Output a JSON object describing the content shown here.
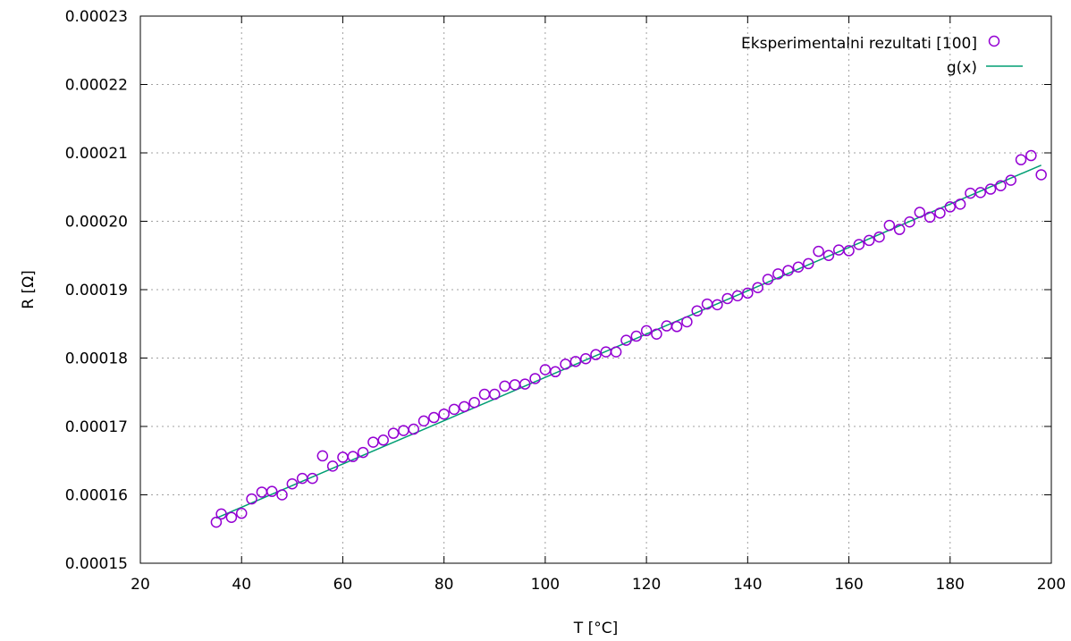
{
  "chart_data": {
    "type": "scatter",
    "title": "",
    "xlabel": "T [°C]",
    "ylabel": "R [Ω]",
    "xlim": [
      20,
      200
    ],
    "ylim": [
      0.00015,
      0.00023
    ],
    "x_ticks": [
      "20",
      "40",
      "60",
      "80",
      "100",
      "120",
      "140",
      "160",
      "180",
      "200"
    ],
    "y_ticks": [
      "0.00015",
      "0.00016",
      "0.00017",
      "0.00018",
      "0.00019",
      "0.00020",
      "0.00021",
      "0.00022",
      "0.00023"
    ],
    "grid": true,
    "legend_position": "top-right",
    "series": [
      {
        "name": "Eksperimentalni rezultati [100]",
        "kind": "points",
        "color": "#9400d3",
        "x": [
          35,
          36,
          38,
          40,
          42,
          44,
          46,
          48,
          50,
          52,
          54,
          56,
          58,
          60,
          62,
          64,
          66,
          68,
          70,
          72,
          74,
          76,
          78,
          80,
          82,
          84,
          86,
          88,
          90,
          92,
          94,
          96,
          98,
          100,
          102,
          104,
          106,
          108,
          110,
          112,
          114,
          116,
          118,
          120,
          122,
          124,
          126,
          128,
          130,
          132,
          134,
          136,
          138,
          140,
          142,
          144,
          146,
          148,
          150,
          152,
          154,
          156,
          158,
          160,
          162,
          164,
          166,
          168,
          170,
          172,
          174,
          176,
          178,
          180,
          182,
          184,
          186,
          188,
          190,
          192,
          194,
          196,
          198
        ],
        "y": [
          0.000156,
          0.0001572,
          0.0001567,
          0.0001573,
          0.0001594,
          0.0001604,
          0.0001605,
          0.00016,
          0.0001616,
          0.0001624,
          0.0001624,
          0.0001657,
          0.0001642,
          0.0001655,
          0.0001656,
          0.0001662,
          0.0001677,
          0.000168,
          0.000169,
          0.0001694,
          0.0001696,
          0.0001708,
          0.0001713,
          0.0001718,
          0.0001725,
          0.0001729,
          0.0001735,
          0.0001747,
          0.0001747,
          0.0001759,
          0.0001761,
          0.0001762,
          0.000177,
          0.0001783,
          0.000178,
          0.0001791,
          0.0001795,
          0.0001799,
          0.0001805,
          0.0001809,
          0.0001809,
          0.0001826,
          0.0001832,
          0.000184,
          0.0001835,
          0.0001847,
          0.0001846,
          0.0001853,
          0.0001869,
          0.0001879,
          0.0001878,
          0.0001887,
          0.0001891,
          0.0001895,
          0.0001903,
          0.0001915,
          0.0001923,
          0.0001928,
          0.0001933,
          0.0001938,
          0.0001956,
          0.000195,
          0.0001958,
          0.0001957,
          0.0001966,
          0.0001972,
          0.0001977,
          0.0001994,
          0.0001988,
          0.0001999,
          0.0002013,
          0.0002006,
          0.0002012,
          0.0002021,
          0.0002025,
          0.0002041,
          0.0002042,
          0.0002047,
          0.0002052,
          0.000206,
          0.000209,
          0.0002096,
          0.0002068
        ]
      },
      {
        "name": "g(x)",
        "kind": "line",
        "color": "#009e73",
        "x": [
          35,
          198
        ],
        "y": [
          0.0001566,
          0.0002082
        ]
      }
    ]
  }
}
